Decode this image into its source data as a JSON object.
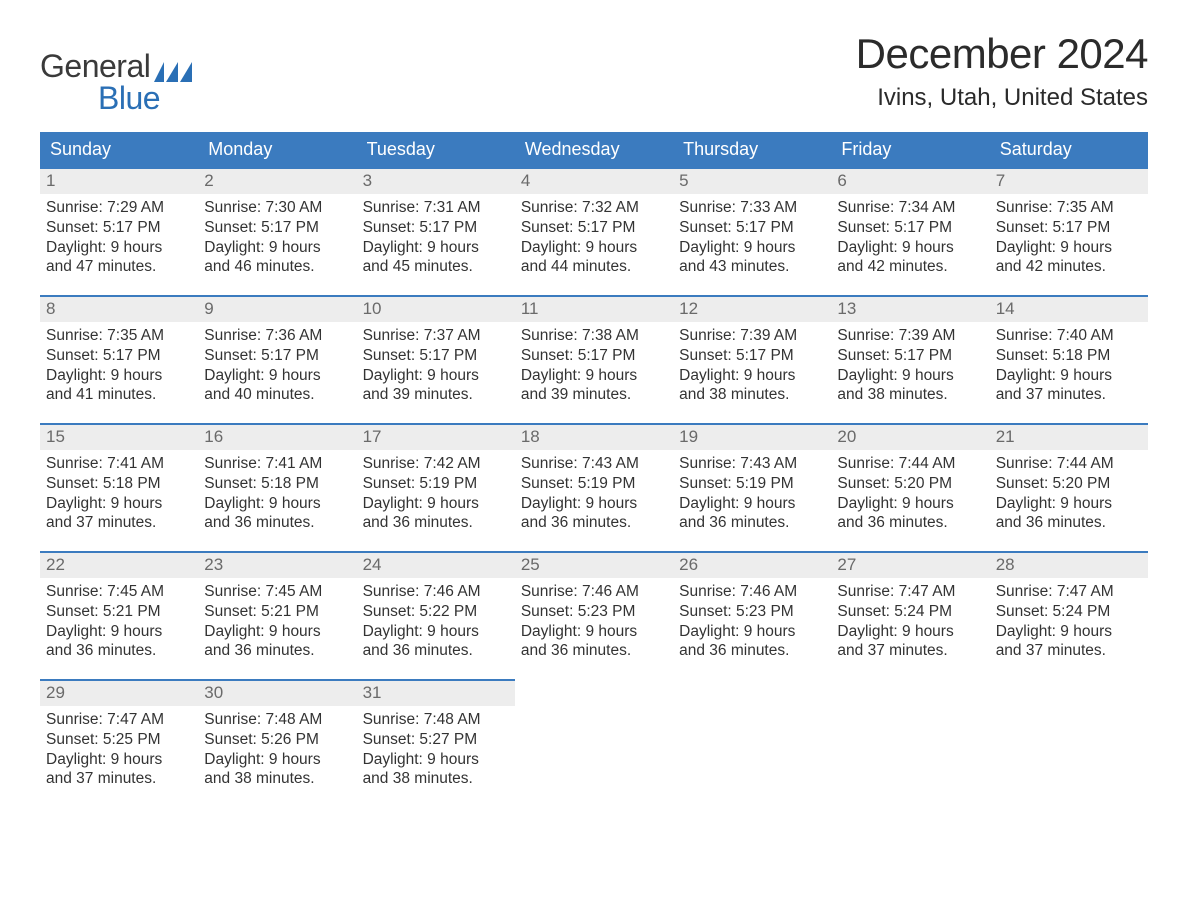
{
  "logo": {
    "top": "General",
    "bottom": "Blue"
  },
  "title": "December 2024",
  "location": "Ivins, Utah, United States",
  "colors": {
    "header_bg": "#3b7bbf",
    "header_text": "#ffffff",
    "daynum_bg": "#ededed",
    "daynum_text": "#6a6a6a",
    "body_text": "#333333",
    "logo_gray": "#3a3a3a",
    "logo_blue": "#2a6fb5",
    "cell_border": "#3b7bbf"
  },
  "day_headers": [
    "Sunday",
    "Monday",
    "Tuesday",
    "Wednesday",
    "Thursday",
    "Friday",
    "Saturday"
  ],
  "weeks": [
    [
      {
        "n": "1",
        "sunrise": "Sunrise: 7:29 AM",
        "sunset": "Sunset: 5:17 PM",
        "daylight": "Daylight: 9 hours and 47 minutes."
      },
      {
        "n": "2",
        "sunrise": "Sunrise: 7:30 AM",
        "sunset": "Sunset: 5:17 PM",
        "daylight": "Daylight: 9 hours and 46 minutes."
      },
      {
        "n": "3",
        "sunrise": "Sunrise: 7:31 AM",
        "sunset": "Sunset: 5:17 PM",
        "daylight": "Daylight: 9 hours and 45 minutes."
      },
      {
        "n": "4",
        "sunrise": "Sunrise: 7:32 AM",
        "sunset": "Sunset: 5:17 PM",
        "daylight": "Daylight: 9 hours and 44 minutes."
      },
      {
        "n": "5",
        "sunrise": "Sunrise: 7:33 AM",
        "sunset": "Sunset: 5:17 PM",
        "daylight": "Daylight: 9 hours and 43 minutes."
      },
      {
        "n": "6",
        "sunrise": "Sunrise: 7:34 AM",
        "sunset": "Sunset: 5:17 PM",
        "daylight": "Daylight: 9 hours and 42 minutes."
      },
      {
        "n": "7",
        "sunrise": "Sunrise: 7:35 AM",
        "sunset": "Sunset: 5:17 PM",
        "daylight": "Daylight: 9 hours and 42 minutes."
      }
    ],
    [
      {
        "n": "8",
        "sunrise": "Sunrise: 7:35 AM",
        "sunset": "Sunset: 5:17 PM",
        "daylight": "Daylight: 9 hours and 41 minutes."
      },
      {
        "n": "9",
        "sunrise": "Sunrise: 7:36 AM",
        "sunset": "Sunset: 5:17 PM",
        "daylight": "Daylight: 9 hours and 40 minutes."
      },
      {
        "n": "10",
        "sunrise": "Sunrise: 7:37 AM",
        "sunset": "Sunset: 5:17 PM",
        "daylight": "Daylight: 9 hours and 39 minutes."
      },
      {
        "n": "11",
        "sunrise": "Sunrise: 7:38 AM",
        "sunset": "Sunset: 5:17 PM",
        "daylight": "Daylight: 9 hours and 39 minutes."
      },
      {
        "n": "12",
        "sunrise": "Sunrise: 7:39 AM",
        "sunset": "Sunset: 5:17 PM",
        "daylight": "Daylight: 9 hours and 38 minutes."
      },
      {
        "n": "13",
        "sunrise": "Sunrise: 7:39 AM",
        "sunset": "Sunset: 5:17 PM",
        "daylight": "Daylight: 9 hours and 38 minutes."
      },
      {
        "n": "14",
        "sunrise": "Sunrise: 7:40 AM",
        "sunset": "Sunset: 5:18 PM",
        "daylight": "Daylight: 9 hours and 37 minutes."
      }
    ],
    [
      {
        "n": "15",
        "sunrise": "Sunrise: 7:41 AM",
        "sunset": "Sunset: 5:18 PM",
        "daylight": "Daylight: 9 hours and 37 minutes."
      },
      {
        "n": "16",
        "sunrise": "Sunrise: 7:41 AM",
        "sunset": "Sunset: 5:18 PM",
        "daylight": "Daylight: 9 hours and 36 minutes."
      },
      {
        "n": "17",
        "sunrise": "Sunrise: 7:42 AM",
        "sunset": "Sunset: 5:19 PM",
        "daylight": "Daylight: 9 hours and 36 minutes."
      },
      {
        "n": "18",
        "sunrise": "Sunrise: 7:43 AM",
        "sunset": "Sunset: 5:19 PM",
        "daylight": "Daylight: 9 hours and 36 minutes."
      },
      {
        "n": "19",
        "sunrise": "Sunrise: 7:43 AM",
        "sunset": "Sunset: 5:19 PM",
        "daylight": "Daylight: 9 hours and 36 minutes."
      },
      {
        "n": "20",
        "sunrise": "Sunrise: 7:44 AM",
        "sunset": "Sunset: 5:20 PM",
        "daylight": "Daylight: 9 hours and 36 minutes."
      },
      {
        "n": "21",
        "sunrise": "Sunrise: 7:44 AM",
        "sunset": "Sunset: 5:20 PM",
        "daylight": "Daylight: 9 hours and 36 minutes."
      }
    ],
    [
      {
        "n": "22",
        "sunrise": "Sunrise: 7:45 AM",
        "sunset": "Sunset: 5:21 PM",
        "daylight": "Daylight: 9 hours and 36 minutes."
      },
      {
        "n": "23",
        "sunrise": "Sunrise: 7:45 AM",
        "sunset": "Sunset: 5:21 PM",
        "daylight": "Daylight: 9 hours and 36 minutes."
      },
      {
        "n": "24",
        "sunrise": "Sunrise: 7:46 AM",
        "sunset": "Sunset: 5:22 PM",
        "daylight": "Daylight: 9 hours and 36 minutes."
      },
      {
        "n": "25",
        "sunrise": "Sunrise: 7:46 AM",
        "sunset": "Sunset: 5:23 PM",
        "daylight": "Daylight: 9 hours and 36 minutes."
      },
      {
        "n": "26",
        "sunrise": "Sunrise: 7:46 AM",
        "sunset": "Sunset: 5:23 PM",
        "daylight": "Daylight: 9 hours and 36 minutes."
      },
      {
        "n": "27",
        "sunrise": "Sunrise: 7:47 AM",
        "sunset": "Sunset: 5:24 PM",
        "daylight": "Daylight: 9 hours and 37 minutes."
      },
      {
        "n": "28",
        "sunrise": "Sunrise: 7:47 AM",
        "sunset": "Sunset: 5:24 PM",
        "daylight": "Daylight: 9 hours and 37 minutes."
      }
    ],
    [
      {
        "n": "29",
        "sunrise": "Sunrise: 7:47 AM",
        "sunset": "Sunset: 5:25 PM",
        "daylight": "Daylight: 9 hours and 37 minutes."
      },
      {
        "n": "30",
        "sunrise": "Sunrise: 7:48 AM",
        "sunset": "Sunset: 5:26 PM",
        "daylight": "Daylight: 9 hours and 38 minutes."
      },
      {
        "n": "31",
        "sunrise": "Sunrise: 7:48 AM",
        "sunset": "Sunset: 5:27 PM",
        "daylight": "Daylight: 9 hours and 38 minutes."
      },
      null,
      null,
      null,
      null
    ]
  ]
}
